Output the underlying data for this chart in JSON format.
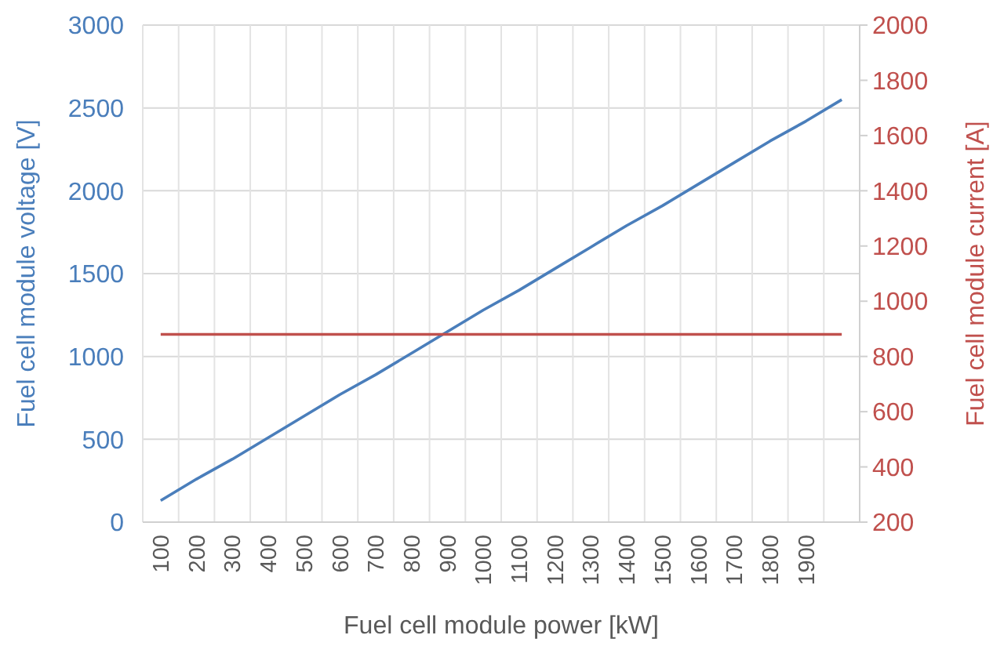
{
  "chart_data": {
    "type": "line",
    "xlabel": "Fuel cell module power [kW]",
    "ylabel": "Fuel cell module voltage [V]",
    "y2label": "Fuel cell module current [A]",
    "categories": [
      "100",
      "200",
      "300",
      "400",
      "500",
      "600",
      "700",
      "800",
      "900",
      "1000",
      "1100",
      "1200",
      "1300",
      "1400",
      "1500",
      "1600",
      "1700",
      "1800",
      "1900",
      null
    ],
    "series": [
      {
        "color": "#4a7ebb",
        "values": [
          130,
          260,
          380,
          510,
          640,
          770,
          890,
          1020,
          1150,
          1280,
          1400,
          1530,
          1660,
          1790,
          1910,
          2040,
          2170,
          2300,
          2420,
          2550
        ]
      },
      {
        "color": "#c0504d",
        "axis": "y2",
        "values": [
          880,
          880,
          880,
          880,
          880,
          880,
          880,
          880,
          880,
          880,
          880,
          880,
          880,
          880,
          880,
          880,
          880,
          880,
          880,
          880
        ]
      }
    ],
    "ylim": [
      0,
      3000
    ],
    "yticks": [
      0,
      500,
      1000,
      1500,
      2000,
      2500,
      3000
    ],
    "y2lim": [
      200,
      2000
    ],
    "y2ticks": [
      200,
      400,
      600,
      800,
      1000,
      1200,
      1400,
      1600,
      1800,
      2000
    ],
    "grid": true,
    "marker": "none",
    "line_style": "solid"
  }
}
